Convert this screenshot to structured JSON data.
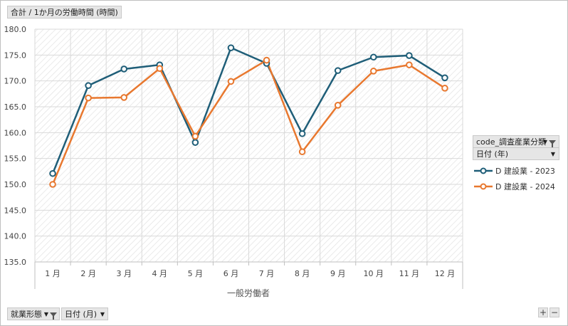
{
  "value_field": "合計 / 1か月の労働時間 (時間)",
  "filter_legend": "code_調査産業分類",
  "legend_field": "日付 (年)",
  "row_field_1": "就業形態",
  "row_field_2": "日付 (月)",
  "zoom_in": "+",
  "zoom_out": "−",
  "colors": {
    "series_2023": "#1f5e78",
    "series_2024": "#e8782f"
  },
  "chart_data": {
    "type": "line",
    "group_label": "一般労働者",
    "categories": [
      "1 月",
      "2 月",
      "3 月",
      "4 月",
      "5 月",
      "6 月",
      "7 月",
      "8 月",
      "9 月",
      "10 月",
      "11 月",
      "12 月"
    ],
    "ylim": [
      135.0,
      180.0
    ],
    "yticks": [
      "180.0",
      "175.0",
      "170.0",
      "165.0",
      "160.0",
      "155.0",
      "150.0",
      "145.0",
      "140.0",
      "135.0"
    ],
    "ytick_values": [
      180,
      175,
      170,
      165,
      160,
      155,
      150,
      145,
      140,
      135
    ],
    "series": [
      {
        "name": "D 建設業 - 2023",
        "values": [
          152.1,
          169.1,
          172.3,
          173.1,
          158.1,
          176.4,
          173.4,
          159.8,
          172.0,
          174.6,
          174.9,
          170.6
        ]
      },
      {
        "name": "D 建設業 - 2024",
        "values": [
          150.0,
          166.7,
          166.8,
          172.4,
          159.3,
          169.9,
          174.0,
          156.3,
          165.3,
          171.9,
          173.1,
          168.6
        ]
      }
    ]
  }
}
